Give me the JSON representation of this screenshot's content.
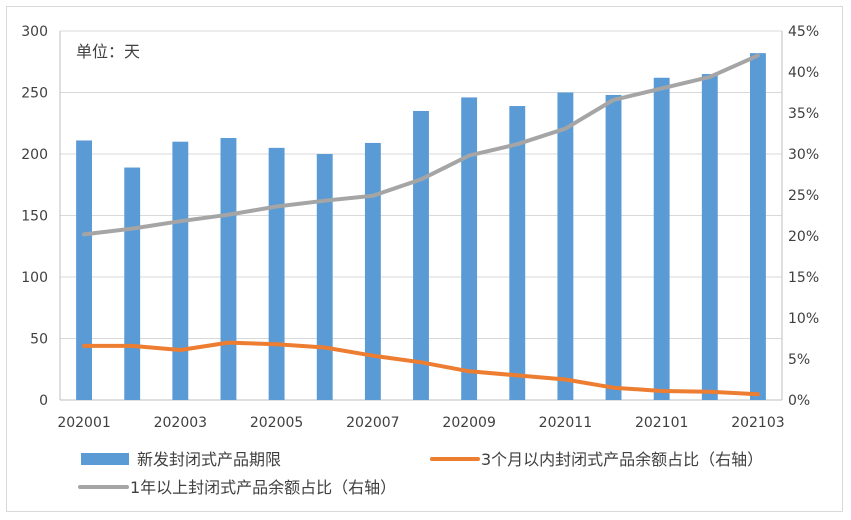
{
  "chart_data": {
    "type": "bar",
    "unit_note": "单位：天",
    "categories": [
      "202001",
      "202002",
      "202003",
      "202004",
      "202005",
      "202006",
      "202007",
      "202008",
      "202009",
      "202010",
      "202011",
      "202012",
      "202101",
      "202102",
      "202103"
    ],
    "x_tick_labels": [
      "202001",
      "202003",
      "202005",
      "202007",
      "202009",
      "202011",
      "202101",
      "202103"
    ],
    "y_left": {
      "ticks": [
        "0",
        "50",
        "100",
        "150",
        "200",
        "250",
        "300"
      ],
      "range": [
        0,
        300
      ]
    },
    "y_right": {
      "ticks": [
        "0%",
        "5%",
        "10%",
        "15%",
        "20%",
        "25%",
        "30%",
        "35%",
        "40%",
        "45%"
      ],
      "range": [
        0,
        0.45
      ]
    },
    "series": [
      {
        "name": "新发封闭式产品期限",
        "type": "bar",
        "axis": "left",
        "color": "#5B9BD5",
        "values": [
          211,
          189,
          210,
          213,
          205,
          200,
          209,
          235,
          246,
          239,
          250,
          248,
          262,
          265,
          282
        ]
      },
      {
        "name": "3个月以内封闭式产品余额占比（右轴）",
        "type": "line",
        "axis": "right",
        "color": "#ED7D31",
        "values": [
          0.066,
          0.066,
          0.061,
          0.07,
          0.068,
          0.064,
          0.054,
          0.046,
          0.035,
          0.03,
          0.025,
          0.015,
          0.011,
          0.01,
          0.007
        ]
      },
      {
        "name": "1年以上封闭式产品余额占比（右轴）",
        "type": "line",
        "axis": "right",
        "color": "#A5A5A5",
        "values": [
          0.202,
          0.209,
          0.218,
          0.226,
          0.236,
          0.243,
          0.249,
          0.269,
          0.298,
          0.312,
          0.331,
          0.366,
          0.38,
          0.394,
          0.42
        ]
      }
    ]
  }
}
